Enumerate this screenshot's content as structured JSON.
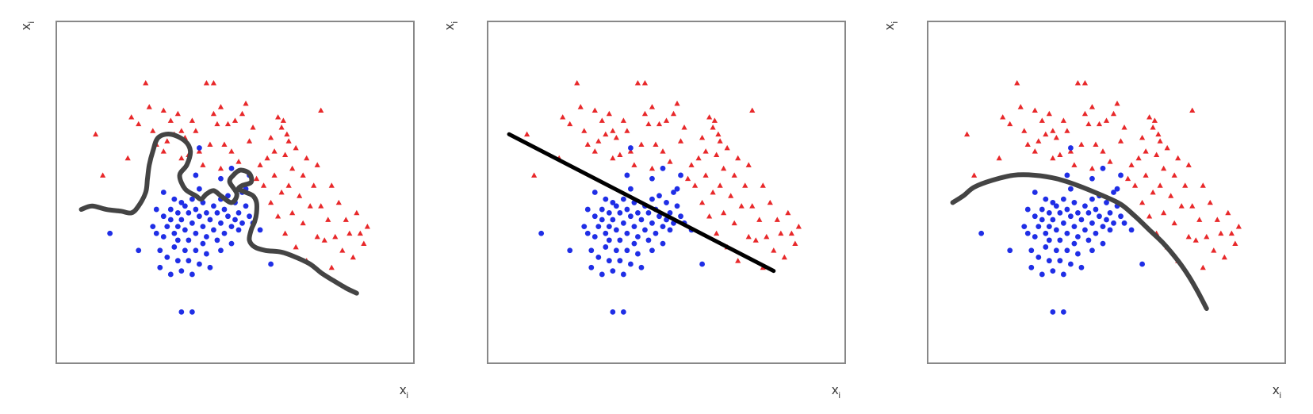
{
  "colors": {
    "class_a": "#e8282a",
    "class_b": "#1f2ee6",
    "boundary": "#444444",
    "boundary_linear": "#000000",
    "frame": "#888888"
  },
  "icons": {
    "class_a_marker": "triangle-marker",
    "class_b_marker": "circle-marker"
  },
  "chart_data": [
    {
      "type": "scatter",
      "xlabel": "x",
      "xlabel_sub": "i",
      "ylabel": "x",
      "ylabel_sub": "i",
      "xlim": [
        0,
        100
      ],
      "ylim": [
        0,
        100
      ],
      "grid": false,
      "boundary": {
        "style": "wiggly",
        "points": [
          [
            7,
            45
          ],
          [
            10,
            46
          ],
          [
            14,
            45
          ],
          [
            18,
            44.5
          ],
          [
            21,
            44
          ],
          [
            23,
            46
          ],
          [
            25,
            50
          ],
          [
            25.5,
            54
          ],
          [
            26,
            58
          ],
          [
            27,
            62
          ],
          [
            28.5,
            66
          ],
          [
            32,
            67
          ],
          [
            36,
            65
          ],
          [
            37.5,
            62
          ],
          [
            36.5,
            58
          ],
          [
            34.5,
            55
          ],
          [
            36,
            51
          ],
          [
            39,
            49
          ],
          [
            40.5,
            48
          ],
          [
            42,
            49.5
          ],
          [
            44,
            50.5
          ],
          [
            46,
            49
          ],
          [
            49,
            47
          ],
          [
            50.5,
            49.5
          ],
          [
            48.5,
            53
          ],
          [
            49.5,
            55
          ],
          [
            51.5,
            56.5
          ],
          [
            54,
            55.5
          ],
          [
            54.5,
            53
          ],
          [
            52,
            52
          ],
          [
            51,
            51
          ],
          [
            53,
            50
          ],
          [
            55,
            49
          ],
          [
            56,
            47
          ],
          [
            56,
            44
          ],
          [
            55.5,
            41.5
          ],
          [
            54.5,
            39
          ],
          [
            54,
            36
          ],
          [
            55.5,
            34
          ],
          [
            58.5,
            33
          ],
          [
            63,
            32.5
          ],
          [
            67,
            31
          ],
          [
            71,
            29
          ],
          [
            74,
            26.5
          ],
          [
            77,
            24.5
          ],
          [
            81,
            22
          ],
          [
            84,
            20.5
          ]
        ]
      }
    },
    {
      "type": "scatter",
      "xlabel": "x",
      "xlabel_sub": "i",
      "ylabel": "x",
      "ylabel_sub": "i",
      "xlim": [
        0,
        100
      ],
      "ylim": [
        0,
        100
      ],
      "grid": false,
      "boundary": {
        "style": "linear",
        "points": [
          [
            6,
            67
          ],
          [
            80,
            27
          ]
        ]
      }
    },
    {
      "type": "scatter",
      "xlabel": "x",
      "xlabel_sub": "i",
      "ylabel": "x",
      "ylabel_sub": "i",
      "xlim": [
        0,
        100
      ],
      "ylim": [
        0,
        100
      ],
      "grid": false,
      "boundary": {
        "style": "curved",
        "points": [
          [
            7,
            47
          ],
          [
            10,
            49
          ],
          [
            13,
            51.5
          ],
          [
            18,
            53.5
          ],
          [
            24,
            55
          ],
          [
            30,
            55
          ],
          [
            36,
            54
          ],
          [
            42,
            52
          ],
          [
            49,
            49
          ],
          [
            54,
            46.5
          ],
          [
            58,
            43
          ],
          [
            62,
            39
          ],
          [
            66,
            35
          ],
          [
            70,
            30
          ],
          [
            73,
            25.5
          ],
          [
            75.5,
            21
          ],
          [
            78,
            16
          ]
        ]
      }
    }
  ],
  "points": {
    "class_a": [
      [
        11,
        67
      ],
      [
        13,
        55
      ],
      [
        20,
        60
      ],
      [
        21,
        72
      ],
      [
        23,
        70
      ],
      [
        25,
        82
      ],
      [
        26,
        75
      ],
      [
        27,
        68
      ],
      [
        28,
        64
      ],
      [
        30,
        74
      ],
      [
        30,
        62
      ],
      [
        31,
        65
      ],
      [
        32,
        71
      ],
      [
        33,
        67
      ],
      [
        34,
        73
      ],
      [
        35,
        60
      ],
      [
        35,
        68
      ],
      [
        36,
        66
      ],
      [
        37,
        61
      ],
      [
        38,
        71
      ],
      [
        39,
        68
      ],
      [
        40,
        62
      ],
      [
        41,
        58
      ],
      [
        42,
        82
      ],
      [
        43,
        64
      ],
      [
        44,
        82
      ],
      [
        44,
        73
      ],
      [
        45,
        70
      ],
      [
        46,
        75
      ],
      [
        46,
        57
      ],
      [
        47,
        64
      ],
      [
        48,
        70
      ],
      [
        49,
        62
      ],
      [
        50,
        71
      ],
      [
        51,
        59
      ],
      [
        52,
        73
      ],
      [
        53,
        76
      ],
      [
        54,
        65
      ],
      [
        55,
        69
      ],
      [
        56,
        54
      ],
      [
        57,
        58
      ],
      [
        58,
        52
      ],
      [
        59,
        60
      ],
      [
        60,
        66
      ],
      [
        60,
        47
      ],
      [
        61,
        62
      ],
      [
        61,
        55
      ],
      [
        62,
        72
      ],
      [
        62,
        43
      ],
      [
        63,
        69
      ],
      [
        63,
        50
      ],
      [
        63.5,
        71
      ],
      [
        64,
        61
      ],
      [
        64,
        38
      ],
      [
        64.5,
        67
      ],
      [
        65,
        65
      ],
      [
        65,
        52
      ],
      [
        66,
        57
      ],
      [
        66,
        44
      ],
      [
        67,
        63
      ],
      [
        67,
        34
      ],
      [
        68,
        49
      ],
      [
        69,
        55
      ],
      [
        69,
        41
      ],
      [
        70,
        60
      ],
      [
        70,
        30
      ],
      [
        71,
        46
      ],
      [
        72,
        52
      ],
      [
        73,
        58
      ],
      [
        73,
        37
      ],
      [
        74,
        46
      ],
      [
        74,
        74
      ],
      [
        75,
        36
      ],
      [
        76,
        42
      ],
      [
        77,
        28
      ],
      [
        77,
        52
      ],
      [
        78,
        37
      ],
      [
        79,
        47
      ],
      [
        80,
        33
      ],
      [
        81,
        42
      ],
      [
        82,
        38
      ],
      [
        83,
        31
      ],
      [
        84,
        44
      ],
      [
        85,
        38
      ],
      [
        86,
        35
      ],
      [
        87,
        40
      ]
    ],
    "class_b": [
      [
        15,
        38
      ],
      [
        23,
        33
      ],
      [
        27,
        40
      ],
      [
        28,
        45
      ],
      [
        28,
        38
      ],
      [
        29,
        33
      ],
      [
        29,
        28
      ],
      [
        30,
        43
      ],
      [
        30,
        37
      ],
      [
        30,
        50
      ],
      [
        31,
        40
      ],
      [
        31,
        31
      ],
      [
        32,
        45
      ],
      [
        32,
        42
      ],
      [
        32,
        26
      ],
      [
        33,
        48
      ],
      [
        33,
        38
      ],
      [
        33,
        34
      ],
      [
        34,
        44
      ],
      [
        34,
        40
      ],
      [
        34,
        36
      ],
      [
        34,
        30
      ],
      [
        35,
        47
      ],
      [
        35,
        42
      ],
      [
        35,
        27
      ],
      [
        36,
        46
      ],
      [
        36,
        39
      ],
      [
        36,
        33
      ],
      [
        37,
        44
      ],
      [
        37,
        36
      ],
      [
        37,
        30
      ],
      [
        38,
        48
      ],
      [
        38,
        41
      ],
      [
        38,
        26
      ],
      [
        39,
        55
      ],
      [
        39,
        45
      ],
      [
        39,
        38
      ],
      [
        39,
        33
      ],
      [
        40,
        51
      ],
      [
        40,
        43
      ],
      [
        40,
        29
      ],
      [
        41,
        47
      ],
      [
        41,
        40
      ],
      [
        41,
        35
      ],
      [
        42,
        44
      ],
      [
        42,
        37
      ],
      [
        42,
        32
      ],
      [
        43,
        42
      ],
      [
        43,
        28
      ],
      [
        44,
        46
      ],
      [
        44,
        39
      ],
      [
        45,
        44
      ],
      [
        45,
        36
      ],
      [
        46,
        48
      ],
      [
        46,
        41
      ],
      [
        46,
        33
      ],
      [
        47,
        45
      ],
      [
        47,
        38
      ],
      [
        48,
        43
      ],
      [
        48,
        49
      ],
      [
        49,
        40
      ],
      [
        49,
        35
      ],
      [
        50,
        47
      ],
      [
        50,
        42
      ],
      [
        51,
        44
      ],
      [
        51,
        39
      ],
      [
        52,
        50
      ],
      [
        52,
        41
      ],
      [
        53,
        46
      ],
      [
        54,
        43
      ],
      [
        54,
        55
      ],
      [
        55,
        41
      ],
      [
        57,
        39
      ],
      [
        60,
        29
      ],
      [
        35,
        15
      ],
      [
        38,
        15
      ],
      [
        40,
        63
      ],
      [
        46,
        54
      ],
      [
        49,
        57
      ],
      [
        53,
        51
      ]
    ]
  }
}
